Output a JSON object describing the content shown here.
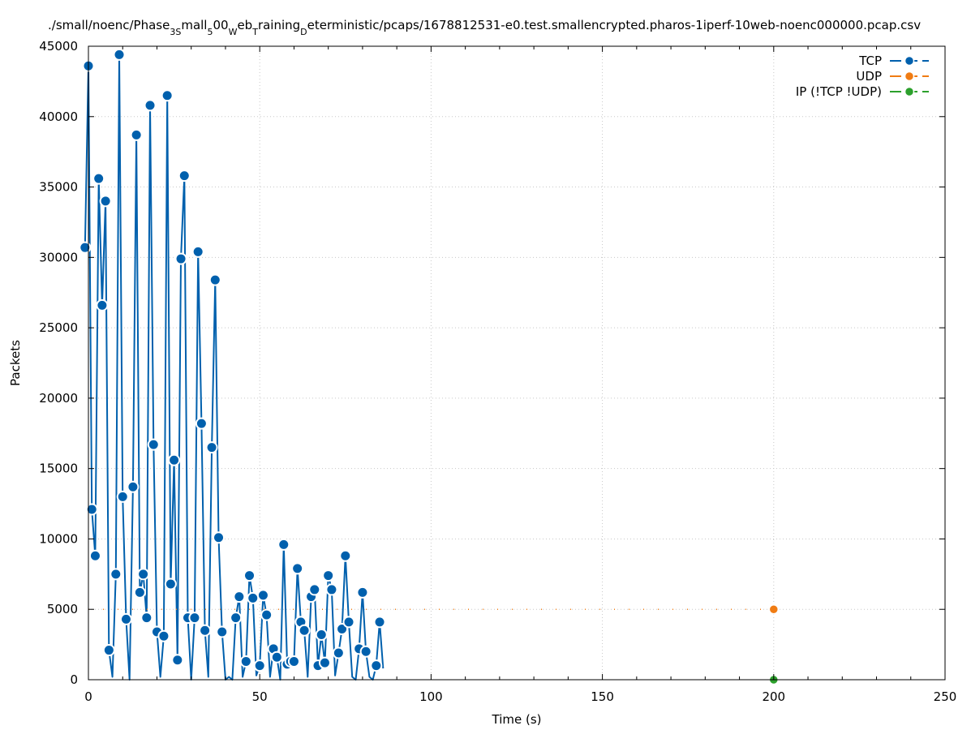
{
  "chart_data": {
    "type": "line",
    "title": "./small/noenc/Phase_3Small_500_Web_Training_Deterministic/pcaps/1678812531-e0.test.smallencrypted.pharos-1iperf-10web-noenc000000.pcap.csv",
    "title_parts": [
      {
        "text": "./small/noenc/Phase",
        "sub": false
      },
      {
        "text": "3S",
        "sub": true
      },
      {
        "text": "mall",
        "sub": false
      },
      {
        "text": "5",
        "sub": true
      },
      {
        "text": "00",
        "sub": false
      },
      {
        "text": "W",
        "sub": true
      },
      {
        "text": "eb",
        "sub": false
      },
      {
        "text": "T",
        "sub": true
      },
      {
        "text": "raining",
        "sub": false
      },
      {
        "text": "D",
        "sub": true
      },
      {
        "text": "eterministic/pcaps/1678812531-e0.test.smallencrypted.pharos-1iperf-10web-noenc000000.pcap.csv",
        "sub": false
      }
    ],
    "xlabel": "Time (s)",
    "ylabel": "Packets",
    "xlim": [
      0,
      250
    ],
    "ylim": [
      0,
      45000
    ],
    "xticks": [
      0,
      50,
      100,
      150,
      200,
      250
    ],
    "yticks": [
      0,
      5000,
      10000,
      15000,
      20000,
      25000,
      30000,
      35000,
      40000,
      45000
    ],
    "grid": true,
    "legend_position": "top-right",
    "series": [
      {
        "name": "TCP",
        "color": "#0060ad",
        "style": "line-points",
        "points": [
          [
            -1,
            30700
          ],
          [
            0,
            43600
          ],
          [
            1,
            12100
          ],
          [
            2,
            8800
          ],
          [
            3,
            35600
          ],
          [
            4,
            26600
          ],
          [
            5,
            34000
          ],
          [
            6,
            2100
          ],
          [
            7,
            200
          ],
          [
            8,
            7500
          ],
          [
            9,
            44400
          ],
          [
            10,
            13000
          ],
          [
            11,
            4300
          ],
          [
            12,
            0
          ],
          [
            13,
            13700
          ],
          [
            14,
            38700
          ],
          [
            15,
            6200
          ],
          [
            16,
            7500
          ],
          [
            17,
            4400
          ],
          [
            18,
            40800
          ],
          [
            19,
            16700
          ],
          [
            20,
            3400
          ],
          [
            21,
            200
          ],
          [
            22,
            3100
          ],
          [
            23,
            41500
          ],
          [
            24,
            6800
          ],
          [
            25,
            15600
          ],
          [
            26,
            1400
          ],
          [
            27,
            29900
          ],
          [
            28,
            35800
          ],
          [
            29,
            4400
          ],
          [
            30,
            0
          ],
          [
            31,
            4400
          ],
          [
            32,
            30400
          ],
          [
            33,
            18200
          ],
          [
            34,
            3500
          ],
          [
            35,
            200
          ],
          [
            36,
            16500
          ],
          [
            37,
            28400
          ],
          [
            38,
            10100
          ],
          [
            39,
            3400
          ],
          [
            40,
            0
          ],
          [
            41,
            200
          ],
          [
            42,
            0
          ],
          [
            43,
            4400
          ],
          [
            44,
            5900
          ],
          [
            45,
            200
          ],
          [
            46,
            1300
          ],
          [
            47,
            7400
          ],
          [
            48,
            5800
          ],
          [
            49,
            300
          ],
          [
            50,
            1000
          ],
          [
            51,
            6000
          ],
          [
            52,
            4600
          ],
          [
            53,
            200
          ],
          [
            54,
            2200
          ],
          [
            55,
            1600
          ],
          [
            56,
            0
          ],
          [
            57,
            9600
          ],
          [
            58,
            1100
          ],
          [
            59,
            1300
          ],
          [
            60,
            1300
          ],
          [
            61,
            7900
          ],
          [
            62,
            4100
          ],
          [
            63,
            3500
          ],
          [
            64,
            200
          ],
          [
            65,
            5900
          ],
          [
            66,
            6400
          ],
          [
            67,
            1000
          ],
          [
            68,
            3200
          ],
          [
            69,
            1200
          ],
          [
            70,
            7400
          ],
          [
            71,
            6400
          ],
          [
            72,
            300
          ],
          [
            73,
            1900
          ],
          [
            74,
            3600
          ],
          [
            75,
            8800
          ],
          [
            76,
            4100
          ],
          [
            77,
            200
          ],
          [
            78,
            0
          ],
          [
            79,
            2200
          ],
          [
            80,
            6200
          ],
          [
            81,
            2000
          ],
          [
            82,
            200
          ],
          [
            83,
            0
          ],
          [
            84,
            1000
          ],
          [
            85,
            4100
          ],
          [
            86,
            800
          ]
        ]
      },
      {
        "name": "UDP",
        "color": "#f07c13",
        "style": "dashed-line-points",
        "points": [
          [
            0,
            5000
          ],
          [
            200,
            5000
          ]
        ]
      },
      {
        "name": "IP (!TCP  !UDP)",
        "color": "#2ca02c",
        "style": "line-points",
        "points": [
          [
            0,
            0
          ],
          [
            200,
            0
          ]
        ]
      }
    ]
  }
}
